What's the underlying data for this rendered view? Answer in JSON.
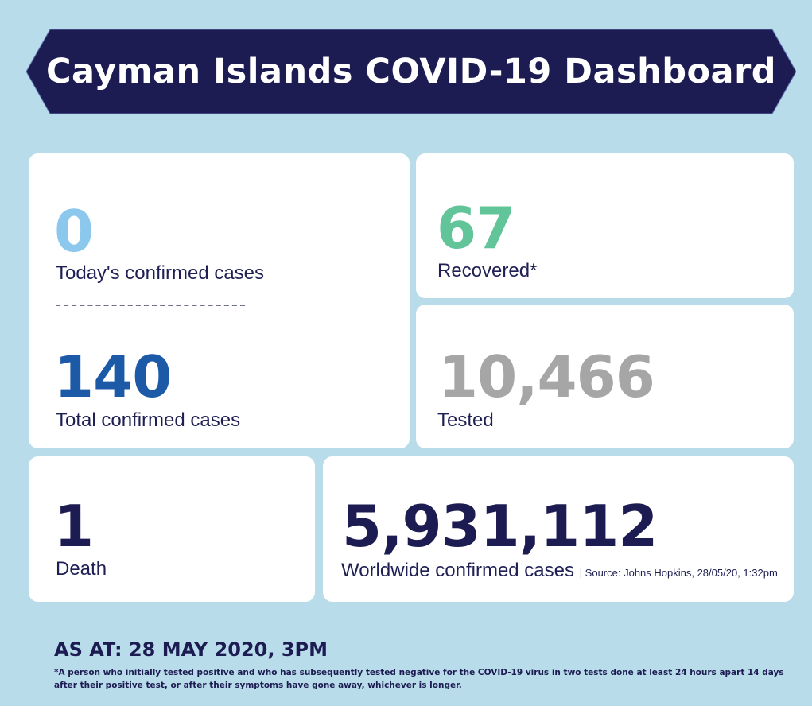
{
  "header": {
    "title": "Cayman Islands COVID-19 Dashboard"
  },
  "stats": {
    "today": {
      "value": "0",
      "label": "Today's confirmed cases"
    },
    "total": {
      "value": "140",
      "label": "Total confirmed cases"
    },
    "recovered": {
      "value": "67",
      "label": "Recovered*"
    },
    "tested": {
      "value": "10,466",
      "label": "Tested"
    },
    "death": {
      "value": "1",
      "label": "Death"
    },
    "worldwide": {
      "value": "5,931,112",
      "label": "Worldwide confirmed cases",
      "source": "| Source: Johns Hopkins, 28/05/20, 1:32pm"
    }
  },
  "footer": {
    "as_at": "AS AT: 28 MAY 2020, 3PM",
    "footnote": "*A person who initially tested positive and who has subsequently tested negative for the COVID-19 virus in two tests done at least 24 hours apart 14 days after their positive test, or after their symptoms have gone away, whichever is longer."
  },
  "colors": {
    "background": "#b9dcea",
    "banner": "#1c1c52",
    "today": "#8cc8ee",
    "total": "#1c5aa8",
    "recovered": "#62c59a",
    "tested": "#a6a6a6",
    "death": "#1c1c52",
    "worldwide": "#1c1c52"
  }
}
